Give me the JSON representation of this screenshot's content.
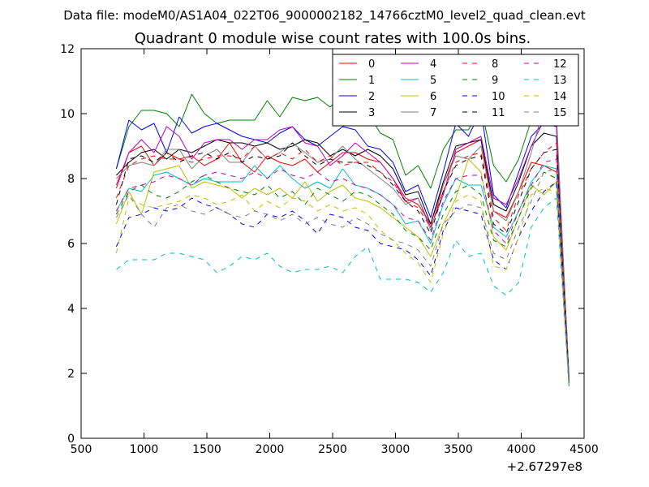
{
  "header": {
    "data_file": "Data file: modeM0/AS1A04_022T06_9000002182_14766cztM0_level2_quad_clean.evt"
  },
  "chart_data": {
    "type": "line",
    "title": "Quadrant 0 module wise count rates with 100.0s bins.",
    "xlabel": "",
    "ylabel": "",
    "x_offset_label": "+2.67297e8",
    "xlim": [
      500,
      4500
    ],
    "ylim": [
      0,
      12
    ],
    "x_ticks": [
      500,
      1000,
      1500,
      2000,
      2500,
      3000,
      3500,
      4000,
      4500
    ],
    "y_ticks": [
      0,
      2,
      4,
      6,
      8,
      10,
      12
    ],
    "grid": false,
    "legend_position": "top-right",
    "legend_columns": 4,
    "x": [
      780,
      880,
      980,
      1080,
      1180,
      1280,
      1380,
      1480,
      1580,
      1680,
      1780,
      1880,
      1980,
      2080,
      2180,
      2280,
      2380,
      2480,
      2580,
      2680,
      2780,
      2880,
      2980,
      3080,
      3180,
      3280,
      3380,
      3480,
      3580,
      3680,
      3780,
      3880,
      3980,
      4080,
      4180,
      4280,
      4380
    ],
    "series": [
      {
        "name": "0",
        "color": "#ff0000",
        "style": "solid",
        "values": [
          7.7,
          8.8,
          9.0,
          8.4,
          8.8,
          8.6,
          8.7,
          8.4,
          8.6,
          9.1,
          8.5,
          8.2,
          8.7,
          8.5,
          8.4,
          8.6,
          8.2,
          8.5,
          8.8,
          8.8,
          8.6,
          8.5,
          8.0,
          7.4,
          7.2,
          6.6,
          7.8,
          8.8,
          9.0,
          9.2,
          7.0,
          6.8,
          7.6,
          8.5,
          8.4,
          8.2,
          1.7
        ]
      },
      {
        "name": "1",
        "color": "#008000",
        "style": "solid",
        "values": [
          8.3,
          9.6,
          10.1,
          10.1,
          10.0,
          9.6,
          10.6,
          10.0,
          9.7,
          9.8,
          9.8,
          9.8,
          10.4,
          9.9,
          10.5,
          10.4,
          10.5,
          10.2,
          10.6,
          10.2,
          10.0,
          9.4,
          9.2,
          8.1,
          8.4,
          7.7,
          8.9,
          9.5,
          9.5,
          10.2,
          8.4,
          7.9,
          8.6,
          9.8,
          9.8,
          9.8,
          1.9
        ]
      },
      {
        "name": "2",
        "color": "#0000ff",
        "style": "solid",
        "values": [
          8.3,
          9.8,
          9.5,
          9.7,
          8.8,
          9.9,
          9.4,
          9.6,
          9.7,
          9.5,
          9.3,
          9.2,
          9.1,
          9.4,
          9.6,
          9.2,
          9.0,
          9.3,
          9.6,
          9.5,
          9.0,
          8.9,
          8.5,
          7.6,
          7.8,
          6.8,
          8.2,
          9.7,
          9.3,
          10.1,
          7.5,
          7.1,
          8.2,
          9.3,
          9.7,
          9.6,
          1.8
        ]
      },
      {
        "name": "3",
        "color": "#000000",
        "style": "solid",
        "values": [
          8.1,
          8.5,
          8.8,
          8.9,
          8.6,
          8.9,
          8.8,
          9.0,
          9.2,
          9.1,
          9.1,
          9.0,
          9.1,
          8.9,
          9.0,
          9.2,
          9.1,
          8.7,
          8.9,
          8.7,
          8.9,
          8.7,
          8.3,
          7.5,
          7.6,
          6.6,
          7.9,
          9.0,
          9.1,
          9.2,
          7.2,
          7.0,
          7.9,
          9.0,
          9.4,
          9.3,
          1.7
        ]
      },
      {
        "name": "4",
        "color": "#bf00bf",
        "style": "solid",
        "values": [
          7.8,
          8.8,
          9.2,
          8.8,
          9.6,
          9.3,
          8.6,
          9.1,
          9.2,
          9.2,
          8.9,
          9.2,
          9.2,
          9.5,
          9.6,
          9.1,
          9.0,
          8.4,
          8.7,
          9.1,
          8.8,
          8.5,
          8.0,
          7.3,
          7.4,
          6.5,
          7.5,
          8.9,
          9.1,
          9.3,
          7.4,
          7.2,
          8.0,
          9.0,
          9.8,
          9.6,
          1.8
        ]
      },
      {
        "name": "5",
        "color": "#00bfbf",
        "style": "solid",
        "values": [
          7.0,
          7.7,
          7.6,
          8.1,
          8.2,
          8.0,
          7.8,
          8.0,
          7.9,
          7.9,
          7.9,
          8.4,
          8.0,
          8.4,
          8.0,
          7.7,
          7.9,
          7.7,
          8.3,
          7.8,
          7.7,
          7.5,
          7.2,
          6.6,
          6.7,
          6.0,
          7.2,
          8.0,
          7.8,
          7.8,
          6.5,
          6.2,
          7.0,
          7.9,
          8.4,
          8.3,
          1.8
        ]
      },
      {
        "name": "6",
        "color": "#bfbf00",
        "style": "solid",
        "values": [
          6.6,
          7.6,
          6.9,
          8.2,
          8.3,
          8.4,
          7.7,
          7.9,
          7.8,
          7.7,
          7.4,
          7.7,
          7.5,
          7.7,
          7.4,
          7.9,
          7.3,
          7.6,
          7.8,
          7.4,
          7.3,
          7.1,
          6.8,
          6.5,
          6.2,
          5.6,
          6.6,
          7.4,
          8.6,
          8.2,
          6.2,
          5.8,
          6.8,
          7.8,
          7.5,
          7.9,
          1.6
        ]
      },
      {
        "name": "7",
        "color": "#808080",
        "style": "solid",
        "values": [
          8.0,
          8.4,
          8.5,
          8.4,
          8.9,
          8.9,
          8.3,
          8.7,
          8.9,
          8.5,
          8.5,
          9.0,
          8.6,
          8.8,
          9.1,
          8.8,
          8.5,
          8.6,
          9.0,
          8.6,
          8.3,
          8.0,
          7.7,
          7.2,
          7.4,
          6.4,
          7.8,
          8.7,
          8.6,
          9.0,
          7.0,
          6.7,
          7.6,
          8.8,
          10.2,
          10.0,
          1.7
        ]
      },
      {
        "name": "8",
        "color": "#ff0000",
        "style": "dashed",
        "values": [
          7.4,
          8.4,
          8.6,
          8.7,
          8.6,
          8.6,
          8.5,
          8.6,
          8.7,
          8.7,
          8.6,
          9.0,
          8.6,
          8.8,
          8.6,
          8.9,
          8.5,
          8.7,
          8.4,
          8.5,
          8.5,
          8.2,
          7.9,
          7.3,
          7.1,
          6.5,
          7.6,
          8.5,
          8.7,
          8.8,
          6.8,
          6.4,
          7.5,
          8.3,
          8.8,
          9.1,
          1.7
        ]
      },
      {
        "name": "9",
        "color": "#008000",
        "style": "dashed",
        "values": [
          6.9,
          7.6,
          7.8,
          7.5,
          7.4,
          7.6,
          7.9,
          8.1,
          7.9,
          7.7,
          7.6,
          7.5,
          7.8,
          7.4,
          7.6,
          7.2,
          7.7,
          7.5,
          7.3,
          7.6,
          7.5,
          7.2,
          6.9,
          6.4,
          6.2,
          5.8,
          6.9,
          7.6,
          7.8,
          7.5,
          6.1,
          5.9,
          6.8,
          7.7,
          8.2,
          8.0,
          1.7
        ]
      },
      {
        "name": "10",
        "color": "#0000ff",
        "style": "dashed",
        "values": [
          5.9,
          6.8,
          6.9,
          7.1,
          7.0,
          7.1,
          7.4,
          7.2,
          7.1,
          6.9,
          6.6,
          6.5,
          6.9,
          6.8,
          7.0,
          6.7,
          6.3,
          6.9,
          6.8,
          6.5,
          6.4,
          6.0,
          5.9,
          5.8,
          5.5,
          5.0,
          6.4,
          7.1,
          7.0,
          6.9,
          5.5,
          5.2,
          6.2,
          7.0,
          7.6,
          7.9,
          1.6
        ]
      },
      {
        "name": "11",
        "color": "#000000",
        "style": "dashed",
        "values": [
          7.2,
          8.6,
          8.7,
          8.5,
          8.8,
          8.5,
          8.7,
          8.8,
          8.6,
          8.8,
          8.5,
          8.7,
          8.6,
          8.7,
          9.1,
          8.7,
          8.4,
          8.6,
          8.5,
          8.5,
          8.4,
          8.2,
          7.8,
          7.3,
          7.0,
          6.3,
          7.6,
          8.4,
          8.6,
          8.7,
          6.6,
          6.3,
          7.3,
          8.3,
          8.8,
          8.9,
          1.7
        ]
      },
      {
        "name": "12",
        "color": "#bf00bf",
        "style": "dashed",
        "values": [
          7.0,
          7.7,
          7.8,
          7.9,
          8.1,
          8.0,
          7.8,
          8.1,
          8.2,
          8.1,
          8.0,
          8.2,
          8.0,
          8.3,
          8.1,
          8.0,
          8.2,
          7.9,
          8.0,
          7.8,
          7.7,
          7.5,
          7.2,
          6.8,
          6.7,
          6.1,
          7.3,
          8.0,
          8.1,
          8.1,
          6.4,
          6.0,
          7.0,
          7.8,
          8.5,
          8.6,
          1.7
        ]
      },
      {
        "name": "13",
        "color": "#00bfbf",
        "style": "dashed",
        "values": [
          5.2,
          5.5,
          5.5,
          5.5,
          5.7,
          5.7,
          5.6,
          5.5,
          5.1,
          5.3,
          5.6,
          5.5,
          5.7,
          5.3,
          5.1,
          5.2,
          5.2,
          5.3,
          5.1,
          5.6,
          5.9,
          4.9,
          4.9,
          4.9,
          4.8,
          4.5,
          5.1,
          6.1,
          5.6,
          5.7,
          4.7,
          4.4,
          4.8,
          6.5,
          7.1,
          7.4,
          1.6
        ]
      },
      {
        "name": "14",
        "color": "#bfbf00",
        "style": "dashed",
        "values": [
          5.7,
          7.4,
          7.2,
          7.1,
          7.2,
          7.3,
          7.5,
          7.4,
          7.2,
          7.3,
          7.5,
          7.0,
          7.3,
          7.1,
          7.4,
          7.3,
          7.0,
          7.2,
          7.0,
          7.1,
          6.9,
          6.4,
          6.1,
          5.7,
          5.4,
          4.8,
          6.3,
          7.3,
          7.5,
          7.3,
          5.3,
          5.2,
          6.2,
          7.5,
          7.7,
          7.6,
          1.6
        ]
      },
      {
        "name": "15",
        "color": "#808080",
        "style": "dashed",
        "values": [
          6.8,
          7.5,
          6.9,
          6.5,
          7.1,
          7.2,
          7.0,
          6.9,
          7.1,
          6.9,
          6.8,
          7.0,
          6.9,
          6.7,
          6.9,
          6.6,
          6.8,
          6.6,
          6.5,
          6.8,
          6.6,
          6.3,
          6.1,
          6.0,
          5.8,
          5.3,
          6.6,
          7.0,
          7.2,
          7.1,
          5.7,
          5.5,
          6.5,
          7.3,
          8.2,
          8.3,
          1.6
        ]
      }
    ]
  }
}
